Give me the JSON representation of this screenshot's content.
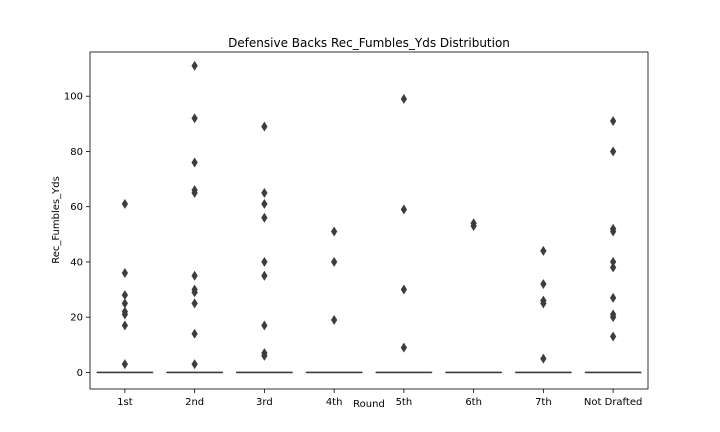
{
  "chart_data": {
    "type": "box",
    "title": "Defensive Backs Rec_Fumbles_Yds Distribution",
    "xlabel": "Round",
    "ylabel": "Rec_Fumbles_Yds",
    "ylim": [
      -6,
      116
    ],
    "yticks": [
      0,
      20,
      40,
      60,
      80,
      100
    ],
    "grid": false,
    "categories": [
      "1st",
      "2nd",
      "3rd",
      "4th",
      "5th",
      "6th",
      "7th",
      "Not Drafted"
    ],
    "boxes": [
      {
        "category": "1st",
        "q1": 0,
        "median": 0,
        "q3": 0,
        "whisker_low": 0,
        "whisker_high": 0,
        "outliers": [
          61,
          36,
          28,
          25,
          22,
          21,
          17,
          3
        ]
      },
      {
        "category": "2nd",
        "q1": 0,
        "median": 0,
        "q3": 0,
        "whisker_low": 0,
        "whisker_high": 0,
        "outliers": [
          111,
          92,
          76,
          66,
          65,
          35,
          30,
          29,
          25,
          14,
          3
        ]
      },
      {
        "category": "3rd",
        "q1": 0,
        "median": 0,
        "q3": 0,
        "whisker_low": 0,
        "whisker_high": 0,
        "outliers": [
          89,
          65,
          61,
          56,
          40,
          35,
          17,
          7,
          6
        ]
      },
      {
        "category": "4th",
        "q1": 0,
        "median": 0,
        "q3": 0,
        "whisker_low": 0,
        "whisker_high": 0,
        "outliers": [
          51,
          40,
          19
        ]
      },
      {
        "category": "5th",
        "q1": 0,
        "median": 0,
        "q3": 0,
        "whisker_low": 0,
        "whisker_high": 0,
        "outliers": [
          99,
          59,
          30,
          9
        ]
      },
      {
        "category": "6th",
        "q1": 0,
        "median": 0,
        "q3": 0,
        "whisker_low": 0,
        "whisker_high": 0,
        "outliers": [
          54,
          53
        ]
      },
      {
        "category": "7th",
        "q1": 0,
        "median": 0,
        "q3": 0,
        "whisker_low": 0,
        "whisker_high": 0,
        "outliers": [
          44,
          32,
          26,
          25,
          5
        ]
      },
      {
        "category": "Not Drafted",
        "q1": 0,
        "median": 0,
        "q3": 0,
        "whisker_low": 0,
        "whisker_high": 0,
        "outliers": [
          91,
          80,
          52,
          51,
          40,
          38,
          27,
          21,
          20,
          13
        ]
      }
    ],
    "colors": {
      "marker": "#3d3d3d",
      "line": "#3d3d3d",
      "axis": "#000000"
    }
  }
}
